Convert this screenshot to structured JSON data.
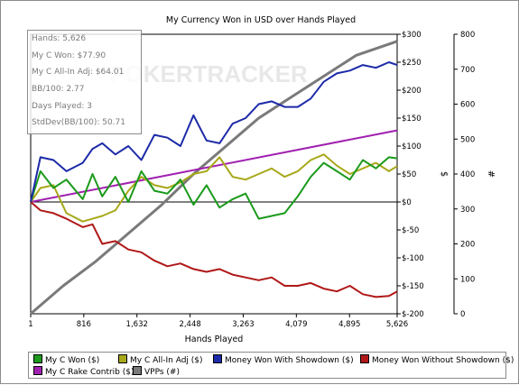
{
  "chart_data": {
    "type": "line",
    "title": "My Currency Won in USD over Hands Played",
    "xlabel": "Hands Played",
    "ylabel_left": "$",
    "ylabel_right": "#",
    "x_ticks": [
      "1",
      "816",
      "1,632",
      "2,448",
      "3,263",
      "4,079",
      "4,895",
      "5,626"
    ],
    "y_ticks": [
      "$300",
      "$250",
      "$200",
      "$150",
      "$100",
      "$50",
      "$0",
      "$-50",
      "$-100",
      "$-150",
      "$-200"
    ],
    "y2_ticks": [
      "800",
      "700",
      "600",
      "500",
      "400",
      "300",
      "200",
      "100",
      "0"
    ],
    "xlim": [
      1,
      5626
    ],
    "ylim": [
      -200,
      300
    ],
    "y2lim": [
      0,
      800
    ],
    "grid": false,
    "legend_position": "bottom",
    "series": [
      {
        "name": "My C Won ($)",
        "color": "#1b9a1b",
        "axis": "left",
        "x": [
          1,
          150,
          350,
          550,
          800,
          950,
          1100,
          1300,
          1500,
          1700,
          1900,
          2100,
          2300,
          2500,
          2700,
          2900,
          3100,
          3300,
          3500,
          3700,
          3900,
          4100,
          4300,
          4500,
          4700,
          4900,
          5100,
          5300,
          5500,
          5626
        ],
        "y": [
          0,
          55,
          25,
          40,
          5,
          50,
          10,
          45,
          0,
          55,
          20,
          15,
          40,
          -5,
          30,
          -10,
          5,
          15,
          -30,
          -25,
          -20,
          10,
          45,
          70,
          55,
          40,
          75,
          60,
          80,
          78
        ]
      },
      {
        "name": "My C All-In Adj ($)",
        "color": "#a8a81a",
        "axis": "left",
        "x": [
          1,
          150,
          350,
          550,
          800,
          950,
          1100,
          1300,
          1500,
          1700,
          1900,
          2100,
          2300,
          2500,
          2700,
          2900,
          3100,
          3300,
          3500,
          3700,
          3900,
          4100,
          4300,
          4500,
          4700,
          4900,
          5100,
          5300,
          5500,
          5626
        ],
        "y": [
          0,
          25,
          30,
          -20,
          -35,
          -30,
          -25,
          -15,
          20,
          45,
          30,
          25,
          35,
          50,
          55,
          80,
          45,
          40,
          50,
          60,
          45,
          55,
          75,
          85,
          65,
          50,
          60,
          70,
          55,
          64
        ]
      },
      {
        "name": "Money Won With Showdown ($)",
        "color": "#1c2aa8",
        "axis": "left",
        "x": [
          1,
          150,
          350,
          550,
          800,
          950,
          1100,
          1300,
          1500,
          1700,
          1900,
          2100,
          2300,
          2500,
          2700,
          2900,
          3100,
          3300,
          3500,
          3700,
          3900,
          4100,
          4300,
          4500,
          4700,
          4900,
          5100,
          5300,
          5500,
          5626
        ],
        "y": [
          0,
          80,
          75,
          55,
          70,
          95,
          105,
          85,
          100,
          75,
          120,
          115,
          100,
          155,
          110,
          105,
          140,
          150,
          175,
          180,
          170,
          170,
          185,
          215,
          230,
          235,
          245,
          240,
          250,
          245
        ]
      },
      {
        "name": "Money Won Without Showdown ($)",
        "color": "#b01818",
        "axis": "left",
        "x": [
          1,
          150,
          350,
          550,
          800,
          950,
          1100,
          1300,
          1500,
          1700,
          1900,
          2100,
          2300,
          2500,
          2700,
          2900,
          3100,
          3300,
          3500,
          3700,
          3900,
          4100,
          4300,
          4500,
          4700,
          4900,
          5100,
          5300,
          5500,
          5626
        ],
        "y": [
          0,
          -15,
          -20,
          -30,
          -45,
          -40,
          -75,
          -70,
          -85,
          -90,
          -105,
          -115,
          -110,
          -120,
          -125,
          -120,
          -130,
          -135,
          -140,
          -135,
          -150,
          -150,
          -145,
          -155,
          -160,
          -150,
          -165,
          -170,
          -168,
          -160
        ]
      },
      {
        "name": "My C Rake Contrib ($)",
        "color": "#a020b0",
        "axis": "left",
        "x": [
          1,
          5626
        ],
        "y": [
          0,
          128
        ]
      },
      {
        "name": "VPPs (#)",
        "color": "#7a7a7a",
        "axis": "right",
        "x": [
          1,
          500,
          1000,
          1500,
          2000,
          2500,
          3000,
          3500,
          4000,
          4500,
          5000,
          5626
        ],
        "y": [
          0,
          80,
          150,
          230,
          310,
          400,
          480,
          560,
          620,
          680,
          740,
          780
        ]
      }
    ]
  },
  "stats": {
    "hands": "Hands: 5,626",
    "won": "My C Won: $77.90",
    "allin": "My C All-In Adj: $64.01",
    "bb100": "BB/100: 2.77",
    "days": "Days Played: 3",
    "stddev": "StdDev(BB/100): 50.71"
  },
  "watermark": "POKERTRACKER"
}
